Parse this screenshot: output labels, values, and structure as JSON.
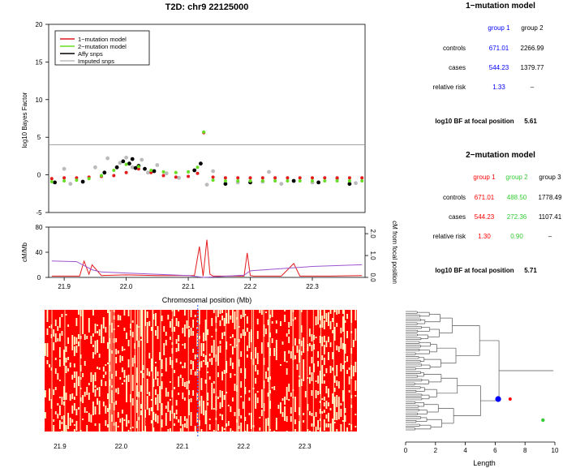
{
  "chart_data": [
    {
      "type": "scatter",
      "title": "T2D: chr9 22125000",
      "ylabel": "log10 Bayes Factor",
      "xlim": [
        21.875,
        22.385
      ],
      "ylim": [
        -5,
        20
      ],
      "y_ticks": [
        "-5",
        "0",
        "5",
        "10",
        "15",
        "20"
      ],
      "threshold_line": 4,
      "legend_position": "top-left",
      "legend": [
        {
          "label": "1−mutation model",
          "color": "#e41a1c",
          "kind": "line"
        },
        {
          "label": "2−mutation model",
          "color": "#66dd22",
          "kind": "line"
        },
        {
          "label": "Affy snps",
          "color": "#000000",
          "kind": "line"
        },
        {
          "label": "Imputed snps",
          "color": "#bbbbbb",
          "kind": "line"
        }
      ],
      "series": [
        {
          "name": "1−mutation model",
          "color": "#e41a1c",
          "x": [
            21.88,
            21.9,
            21.92,
            21.94,
            21.96,
            21.98,
            22.0,
            22.02,
            22.04,
            22.06,
            22.08,
            22.1,
            22.115,
            22.125,
            22.14,
            22.16,
            22.18,
            22.2,
            22.22,
            22.24,
            22.26,
            22.28,
            22.3,
            22.32,
            22.34,
            22.36,
            22.38
          ],
          "y": [
            -0.5,
            -0.4,
            -0.4,
            -0.3,
            -0.2,
            -0.1,
            0.3,
            0.8,
            0.3,
            -0.1,
            -0.3,
            -0.2,
            0.2,
            5.6,
            -0.3,
            -0.4,
            -0.4,
            -0.4,
            -0.4,
            -0.4,
            -0.4,
            -0.4,
            -0.4,
            -0.4,
            -0.4,
            -0.4,
            -0.4
          ]
        },
        {
          "name": "2−mutation model",
          "color": "#66dd22",
          "x": [
            21.88,
            21.9,
            21.92,
            21.94,
            21.96,
            21.98,
            22.0,
            22.02,
            22.04,
            22.06,
            22.08,
            22.1,
            22.115,
            22.125,
            22.14,
            22.16,
            22.18,
            22.2,
            22.22,
            22.24,
            22.26,
            22.28,
            22.3,
            22.32,
            22.34,
            22.36,
            22.38
          ],
          "y": [
            -0.9,
            -0.8,
            -0.7,
            -0.5,
            -0.1,
            0.6,
            1.4,
            1.1,
            0.6,
            0.4,
            0.3,
            0.4,
            1.0,
            5.7,
            -0.7,
            -0.8,
            -0.8,
            -0.8,
            -0.8,
            -0.8,
            -0.8,
            -0.8,
            -0.8,
            -0.8,
            -0.8,
            -0.8,
            -0.8
          ]
        },
        {
          "name": "Affy snps",
          "color": "#000000",
          "x": [
            21.885,
            21.93,
            21.965,
            21.985,
            21.995,
            22.005,
            22.01,
            22.015,
            22.02,
            22.03,
            22.045,
            22.11,
            22.12,
            22.16,
            22.2,
            22.27,
            22.31,
            22.36
          ],
          "y": [
            -1.0,
            -0.9,
            0.3,
            1.0,
            1.8,
            1.5,
            2.1,
            0.9,
            1.2,
            0.8,
            0.5,
            0.6,
            1.5,
            -1.2,
            -1.0,
            -0.8,
            -1.0,
            -1.2
          ]
        },
        {
          "name": "Imputed snps",
          "color": "#bbbbbb",
          "x": [
            21.9,
            21.91,
            21.95,
            21.97,
            21.99,
            22.0,
            22.01,
            22.025,
            22.035,
            22.05,
            22.065,
            22.085,
            22.13,
            22.14,
            22.18,
            22.22,
            22.23,
            22.25,
            22.3,
            22.34,
            22.37
          ],
          "y": [
            0.8,
            -1.2,
            1.0,
            2.2,
            1.6,
            2.3,
            1.0,
            2.0,
            0.3,
            1.3,
            0.2,
            -0.4,
            -1.3,
            0.5,
            -1.0,
            -0.9,
            0.4,
            -1.2,
            -1.0,
            -0.5,
            -1.1
          ]
        }
      ]
    },
    {
      "type": "line",
      "ylabel": "cM/Mb",
      "y2label": "cM from focal position",
      "xlabel": "Chromosomal position (Mb)",
      "xlim": [
        21.875,
        22.385
      ],
      "x_ticks": [
        "21.9",
        "22.0",
        "22.1",
        "22.2",
        "22.3"
      ],
      "ylim": [
        0,
        80
      ],
      "y_ticks": [
        "0",
        "40",
        "80"
      ],
      "y2lim": [
        0,
        2.3
      ],
      "y2_ticks": [
        "0.0",
        "1.0",
        "2.0"
      ],
      "series": [
        {
          "name": "cM/Mb",
          "color": "#e41a1c",
          "x": [
            21.88,
            21.925,
            21.932,
            21.94,
            21.945,
            21.96,
            22.0,
            22.05,
            22.11,
            22.118,
            22.124,
            22.13,
            22.135,
            22.14,
            22.19,
            22.195,
            22.2,
            22.205,
            22.25,
            22.27,
            22.28,
            22.33,
            22.38
          ],
          "y": [
            2,
            2,
            26,
            5,
            20,
            3,
            4,
            3,
            3,
            49,
            2,
            60,
            5,
            2,
            2,
            39,
            3,
            2,
            2,
            22,
            2,
            2,
            3
          ]
        },
        {
          "name": "cM from focal position",
          "color": "#9a55d0",
          "x": [
            21.88,
            21.92,
            21.945,
            21.96,
            22.0,
            22.1,
            22.125,
            22.19,
            22.2,
            22.3,
            22.38
          ],
          "y": [
            0.75,
            0.72,
            0.35,
            0.25,
            0.2,
            0.08,
            0.0,
            0.1,
            0.3,
            0.5,
            0.58
          ]
        }
      ]
    },
    {
      "type": "heatmap",
      "xlim": [
        21.875,
        22.385
      ],
      "x_ticks": [
        "21.9",
        "22.0",
        "22.1",
        "22.2",
        "22.3"
      ],
      "focal_position": 22.125,
      "colors": {
        "allele1": "#ff0000",
        "allele2": "#ffffcc"
      }
    },
    {
      "type": "scatter",
      "xlabel": "Length",
      "xlim": [
        0,
        10
      ],
      "x_ticks": [
        "0",
        "2",
        "4",
        "6",
        "8",
        "10"
      ],
      "markers": [
        {
          "name": "blue",
          "x": 6.2,
          "color": "#0000ff"
        },
        {
          "name": "red",
          "x": 7.0,
          "color": "#ff0000"
        },
        {
          "name": "green",
          "x": 9.2,
          "color": "#33cc33"
        }
      ]
    }
  ],
  "models": {
    "one": {
      "title": "1−mutation model",
      "headers": [
        "group 1",
        "group 2"
      ],
      "header_colors": [
        "#0000ff",
        "#000000"
      ],
      "rows": [
        {
          "label": "controls",
          "values": [
            "671.01",
            "2266.99"
          ],
          "colors": [
            "#0000ff",
            "#000000"
          ]
        },
        {
          "label": "cases",
          "values": [
            "544.23",
            "1379.77"
          ],
          "colors": [
            "#0000ff",
            "#000000"
          ]
        },
        {
          "label": "relative risk",
          "values": [
            "1.33",
            "–"
          ],
          "colors": [
            "#0000ff",
            "#000000"
          ]
        }
      ],
      "bf_label": "log10 BF at focal position",
      "bf_value": "5.61"
    },
    "two": {
      "title": "2−mutation model",
      "headers": [
        "group 1",
        "group 2",
        "group 3"
      ],
      "header_colors": [
        "#ff0000",
        "#33cc33",
        "#000000"
      ],
      "rows": [
        {
          "label": "controls",
          "values": [
            "671.01",
            "488.50",
            "1778.49"
          ],
          "colors": [
            "#ff0000",
            "#33cc33",
            "#000000"
          ]
        },
        {
          "label": "cases",
          "values": [
            "544.23",
            "272.36",
            "1107.41"
          ],
          "colors": [
            "#ff0000",
            "#33cc33",
            "#000000"
          ]
        },
        {
          "label": "relative risk",
          "values": [
            "1.30",
            "0.90",
            "–"
          ],
          "colors": [
            "#ff0000",
            "#33cc33",
            "#000000"
          ]
        }
      ],
      "bf_label": "log10 BF at focal position",
      "bf_value": "5.71"
    }
  }
}
